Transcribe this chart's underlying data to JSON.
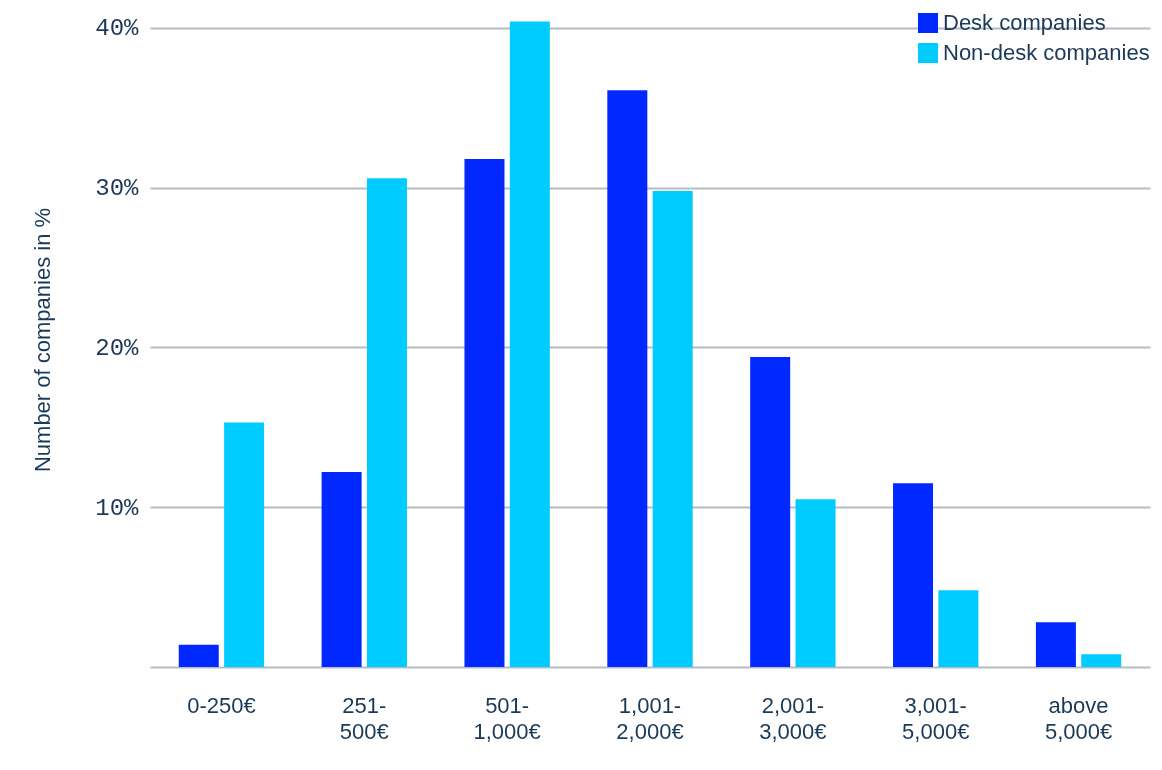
{
  "chart_data": {
    "type": "bar",
    "ylabel": "Number of companies in %",
    "categories": [
      "0-250€",
      "251- 500€",
      "501- 1,000€",
      "1,001- 2,000€",
      "2,001- 3,000€",
      "3,001- 5,000€",
      "above 5,000€"
    ],
    "series": [
      {
        "name": "Desk companies",
        "color": "#0028ff",
        "values": [
          1.4,
          12.2,
          31.8,
          36.1,
          19.4,
          11.5,
          2.8
        ]
      },
      {
        "name": "Non-desk companies",
        "color": "#00ccff",
        "values": [
          15.3,
          30.6,
          40.4,
          29.8,
          10.5,
          4.8,
          0.8
        ]
      }
    ],
    "ylim": [
      0,
      41
    ],
    "yticks": [
      {
        "value": 0,
        "label": null
      },
      {
        "value": 10,
        "label": "10%"
      },
      {
        "value": 20,
        "label": "20%"
      },
      {
        "value": 30,
        "label": "30%"
      },
      {
        "value": 40,
        "label": "40%"
      }
    ],
    "grid": "y",
    "legend": "top right"
  }
}
